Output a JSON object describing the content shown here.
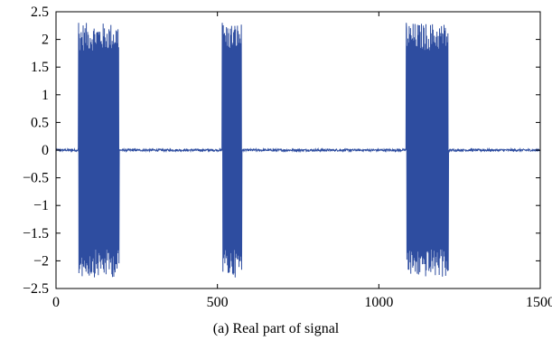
{
  "caption": "(a)  Real part of signal",
  "chart_data": {
    "type": "line",
    "title": "",
    "xlabel": "",
    "ylabel": "",
    "xlim": [
      0,
      1500
    ],
    "ylim": [
      -2.5,
      2.5
    ],
    "x_ticks": [
      0,
      500,
      1000,
      1500
    ],
    "x_tick_labels": [
      "0",
      "500",
      "1000",
      "1500"
    ],
    "y_ticks": [
      2.5,
      2,
      1.5,
      1,
      0.5,
      0,
      -0.5,
      -1,
      -1.5,
      -2,
      -2.5
    ],
    "y_tick_labels": [
      "2.5",
      "2",
      "1.5",
      "1",
      "0.5",
      "0",
      "−0.5",
      "−1",
      "−1.5",
      "−2",
      "−2.5"
    ],
    "grid": false,
    "series": [
      {
        "color": "#2e4da0",
        "noise_amplitude": 0.02,
        "bursts": [
          {
            "start": 70,
            "end": 195,
            "amplitude": 2.3
          },
          {
            "start": 515,
            "end": 575,
            "amplitude": 2.3
          },
          {
            "start": 1085,
            "end": 1215,
            "amplitude": 2.3
          }
        ],
        "x_max": 1500
      }
    ]
  }
}
